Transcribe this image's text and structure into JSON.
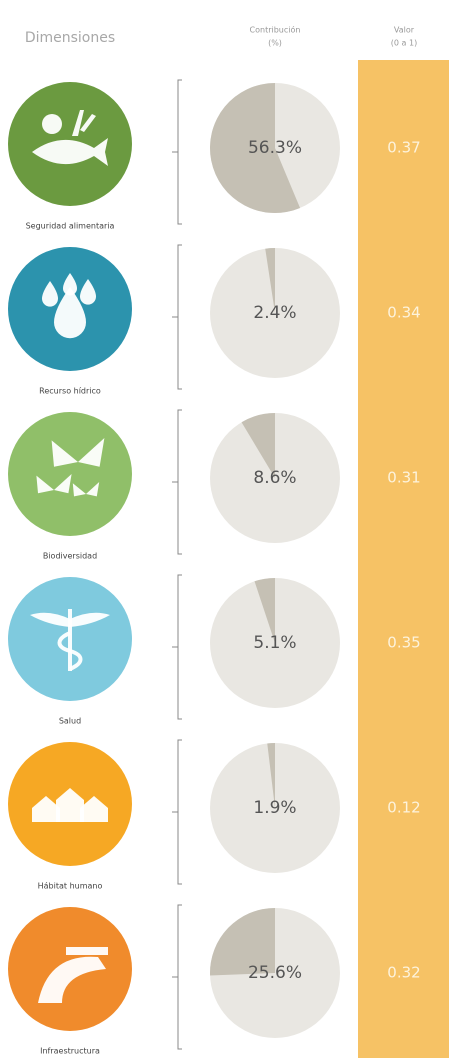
{
  "chart_data": {
    "type": "pie",
    "header_dimension": "Dimensiones",
    "header_contribution": [
      "Contribución",
      "(%)"
    ],
    "header_value": [
      "Valor",
      "(0 a 1)"
    ],
    "categories": [
      "Seguridad alimentaria",
      "Recurso hídrico",
      "Biodiversidad",
      "Salud",
      "Hábitat humano",
      "Infraestructura"
    ],
    "icon_colors": [
      "#6b9a40",
      "#2c93ad",
      "#90bf69",
      "#7fcade",
      "#f6a824",
      "#f08b2c"
    ],
    "values": [
      56.3,
      2.4,
      8.6,
      5.1,
      1.9,
      25.6
    ],
    "value_labels": [
      "56.3%",
      "2.4%",
      "8.6%",
      "5.1%",
      "1.9%",
      "25.6%"
    ],
    "scores": [
      0.37,
      0.34,
      0.31,
      0.35,
      0.12,
      0.32
    ],
    "slice_color": "#c5c0b4",
    "pie_background": "#e9e7e2",
    "value_column_color": "#f6c265"
  }
}
